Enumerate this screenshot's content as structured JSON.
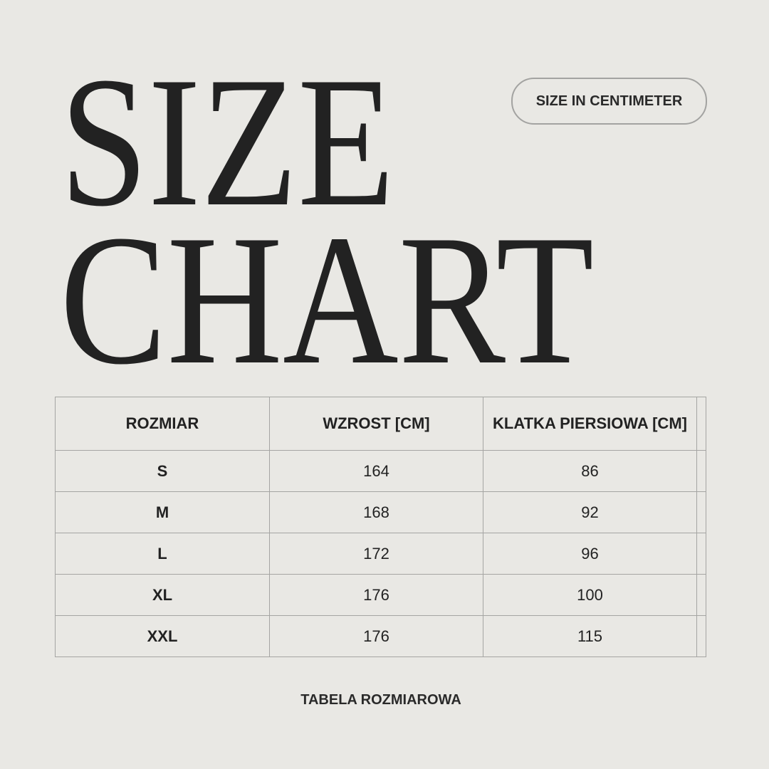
{
  "title": {
    "line1": "SIZE",
    "line2": "CHART"
  },
  "badge": "SIZE IN CENTIMETER",
  "table": {
    "headers": [
      "ROZMIAR",
      "WZROST [CM]",
      "KLATKA PIERSIOWA [CM]",
      ""
    ],
    "rows": [
      {
        "size": "S",
        "height": "164",
        "chest": "86"
      },
      {
        "size": "M",
        "height": "168",
        "chest": "92"
      },
      {
        "size": "L",
        "height": "172",
        "chest": "96"
      },
      {
        "size": "XL",
        "height": "176",
        "chest": "100"
      },
      {
        "size": "XXL",
        "height": "176",
        "chest": "115"
      }
    ]
  },
  "footer": "TABELA ROZMIAROWA",
  "colors": {
    "background": "#e9e8e4",
    "text": "#222222",
    "border": "#a5a5a3"
  }
}
